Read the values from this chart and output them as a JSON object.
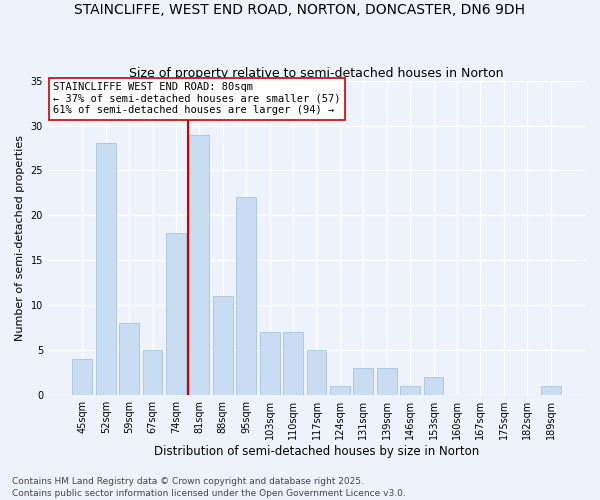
{
  "title": "STAINCLIFFE, WEST END ROAD, NORTON, DONCASTER, DN6 9DH",
  "subtitle": "Size of property relative to semi-detached houses in Norton",
  "xlabel": "Distribution of semi-detached houses by size in Norton",
  "ylabel": "Number of semi-detached properties",
  "categories": [
    "45sqm",
    "52sqm",
    "59sqm",
    "67sqm",
    "74sqm",
    "81sqm",
    "88sqm",
    "95sqm",
    "103sqm",
    "110sqm",
    "117sqm",
    "124sqm",
    "131sqm",
    "139sqm",
    "146sqm",
    "153sqm",
    "160sqm",
    "167sqm",
    "175sqm",
    "182sqm",
    "189sqm"
  ],
  "values": [
    4,
    28,
    8,
    5,
    18,
    29,
    11,
    22,
    7,
    7,
    5,
    1,
    3,
    3,
    1,
    2,
    0,
    0,
    0,
    0,
    1
  ],
  "bar_color": "#c9ddf2",
  "bar_edge_color": "#a8c4e0",
  "vline_color": "#cc0000",
  "vline_index": 5,
  "annotation_text": "STAINCLIFFE WEST END ROAD: 80sqm\n← 37% of semi-detached houses are smaller (57)\n61% of semi-detached houses are larger (94) →",
  "annotation_box_facecolor": "white",
  "annotation_box_edgecolor": "#cc0000",
  "ylim": [
    0,
    35
  ],
  "yticks": [
    0,
    5,
    10,
    15,
    20,
    25,
    30,
    35
  ],
  "bg_color": "#eef2fb",
  "grid_color": "#ffffff",
  "footer": "Contains HM Land Registry data © Crown copyright and database right 2025.\nContains public sector information licensed under the Open Government Licence v3.0.",
  "title_fontsize": 10,
  "subtitle_fontsize": 9,
  "xlabel_fontsize": 8.5,
  "ylabel_fontsize": 8,
  "tick_fontsize": 7,
  "annotation_fontsize": 7.5,
  "footer_fontsize": 6.5
}
